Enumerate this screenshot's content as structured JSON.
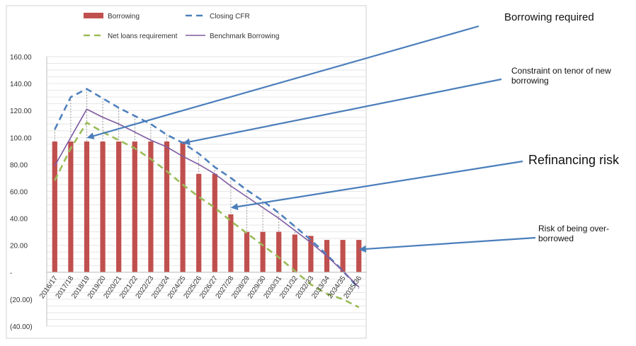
{
  "chart_data": {
    "type": "bar",
    "categories": [
      "2016/17",
      "2017/18",
      "2018/19",
      "2019/20",
      "2020/21",
      "2021/22",
      "2022/23",
      "2023/24",
      "2024/25",
      "2025/26",
      "2026/27",
      "2027/28",
      "2028/29",
      "2029/30",
      "2030/31",
      "2031/32",
      "2032/33",
      "2033/34",
      "2034/35",
      "2035/36"
    ],
    "series": [
      {
        "name": "Borrowing",
        "kind": "bar",
        "color": "#c0504d",
        "values": [
          97,
          97,
          97,
          97,
          97,
          97,
          97,
          97,
          97,
          73,
          73,
          43,
          30,
          30,
          30,
          28,
          27,
          24,
          24,
          24
        ]
      },
      {
        "name": "Closing CFR",
        "kind": "line",
        "style": "dashed",
        "color": "#4f81bd",
        "values": [
          106,
          130,
          136,
          129,
          122,
          116,
          110,
          102,
          96,
          88,
          78,
          70,
          61,
          53,
          44,
          34,
          24,
          13,
          1,
          -12
        ]
      },
      {
        "name": "Net loans requirement",
        "kind": "line",
        "style": "dashed",
        "color": "#9bbb59",
        "values": [
          68,
          92,
          111,
          104,
          98,
          92,
          84,
          75,
          65,
          56,
          48,
          38,
          29,
          20,
          11,
          1,
          -9,
          -16,
          -20,
          -26
        ]
      },
      {
        "name": "Benchmark Borrowing",
        "kind": "line",
        "style": "solid",
        "color": "#7e5aa0",
        "values": [
          79,
          100,
          121,
          115,
          110,
          104,
          98,
          93,
          86,
          80,
          73,
          64,
          56,
          48,
          40,
          31,
          22,
          12,
          1,
          -11
        ]
      }
    ],
    "ylim": [
      -40,
      160
    ],
    "yticks": [
      "(40.00)",
      "(20.00)",
      "-",
      "20.00",
      "40.00",
      "60.00",
      "80.00",
      "100.00",
      "120.00",
      "140.00",
      "160.00"
    ],
    "grid": true,
    "legend_position": "top",
    "annotations": [
      {
        "text": "Borrowing required",
        "category": "2018/19",
        "value": 100
      },
      {
        "text": "Constraint on tenor of new borrowing",
        "category": "2024/25",
        "value": 96
      },
      {
        "text": "Refinancing risk",
        "category": "2027/28",
        "value": 48
      },
      {
        "text": "Risk of being over-borrowed",
        "category": "2035/36",
        "value": 17
      }
    ],
    "annotation_arrow_color": "#4a7ebb"
  }
}
